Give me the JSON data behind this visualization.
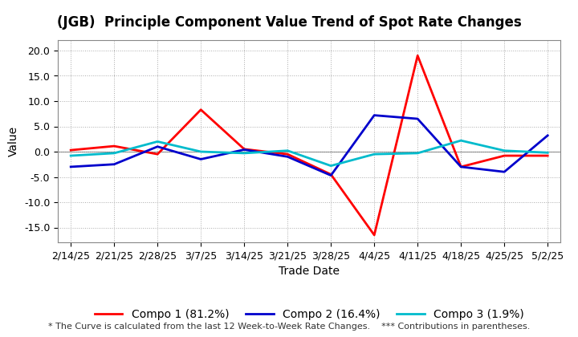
{
  "title": "(JGB)  Principle Component Value Trend of Spot Rate Changes",
  "xlabel": "Trade Date",
  "ylabel": "Value",
  "footnote": "* The Curve is calculated from the last 12 Week-to-Week Rate Changes.    *** Contributions in parentheses.",
  "dates": [
    "2/14/25",
    "2/21/25",
    "2/28/25",
    "3/7/25",
    "3/14/25",
    "3/21/25",
    "3/28/25",
    "4/4/25",
    "4/11/25",
    "4/18/25",
    "4/25/25",
    "5/2/25"
  ],
  "compo1": [
    0.3,
    1.1,
    -0.5,
    8.3,
    0.5,
    -0.5,
    -4.5,
    -16.5,
    19.0,
    -3.0,
    -0.8,
    -0.8
  ],
  "compo2": [
    -3.0,
    -2.5,
    1.0,
    -1.5,
    0.4,
    -1.0,
    -4.7,
    7.2,
    6.5,
    -3.0,
    -4.0,
    3.2
  ],
  "compo3": [
    -0.8,
    -0.3,
    2.0,
    0.0,
    -0.3,
    0.2,
    -2.8,
    -0.5,
    -0.3,
    2.2,
    0.2,
    -0.2
  ],
  "compo1_color": "#FF0000",
  "compo2_color": "#0000CC",
  "compo3_color": "#00BBCC",
  "compo1_label": "Compo 1 (81.2%)",
  "compo2_label": "Compo 2 (16.4%)",
  "compo3_label": "Compo 3 (1.9%)",
  "ylim": [
    -18,
    22
  ],
  "yticks": [
    -15.0,
    -10.0,
    -5.0,
    0.0,
    5.0,
    10.0,
    15.0,
    20.0
  ],
  "bg_color": "#FFFFFF",
  "plot_bg_color": "#FFFFFF",
  "grid_color": "#AAAAAA",
  "linewidth": 2.0,
  "title_fontsize": 12,
  "axis_label_fontsize": 10,
  "tick_fontsize": 9,
  "legend_fontsize": 10,
  "footnote_fontsize": 8
}
